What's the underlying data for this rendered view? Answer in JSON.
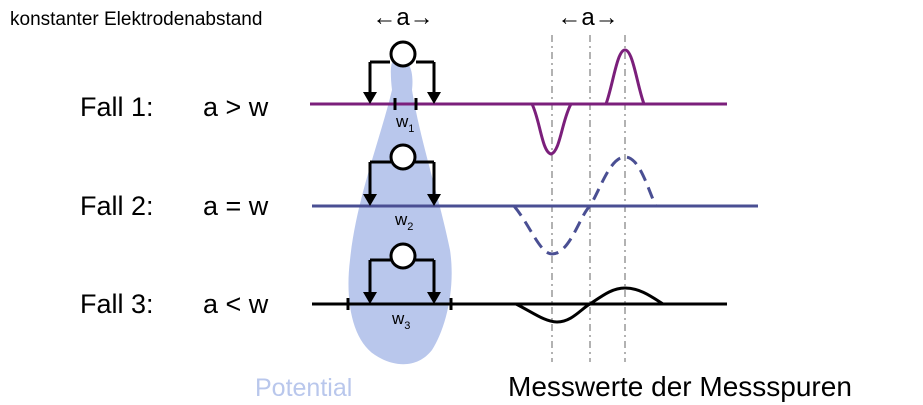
{
  "header": {
    "caption": "konstanter Elektrodenabstand",
    "left_a": "←a→",
    "right_a": "←a→"
  },
  "cases": [
    {
      "label": "Fall 1:",
      "relation": "a > w",
      "width_base": "w",
      "width_sub": "1",
      "line_color": "#7b1f7b",
      "wave_style": "solid"
    },
    {
      "label": "Fall 2:",
      "relation": "a = w",
      "width_base": "w",
      "width_sub": "2",
      "line_color": "#4a4f93",
      "wave_style": "dashed"
    },
    {
      "label": "Fall 3:",
      "relation": "a < w",
      "width_base": "w",
      "width_sub": "3",
      "line_color": "#000000",
      "wave_style": "solid"
    }
  ],
  "labels": {
    "potential": "Potential",
    "messwerte": "Messwerte der Messspuren"
  },
  "colors": {
    "potential_fill": "#b9c7ec",
    "potential_text": "#b9c7ec",
    "guide": "#888888",
    "text": "#000000"
  }
}
